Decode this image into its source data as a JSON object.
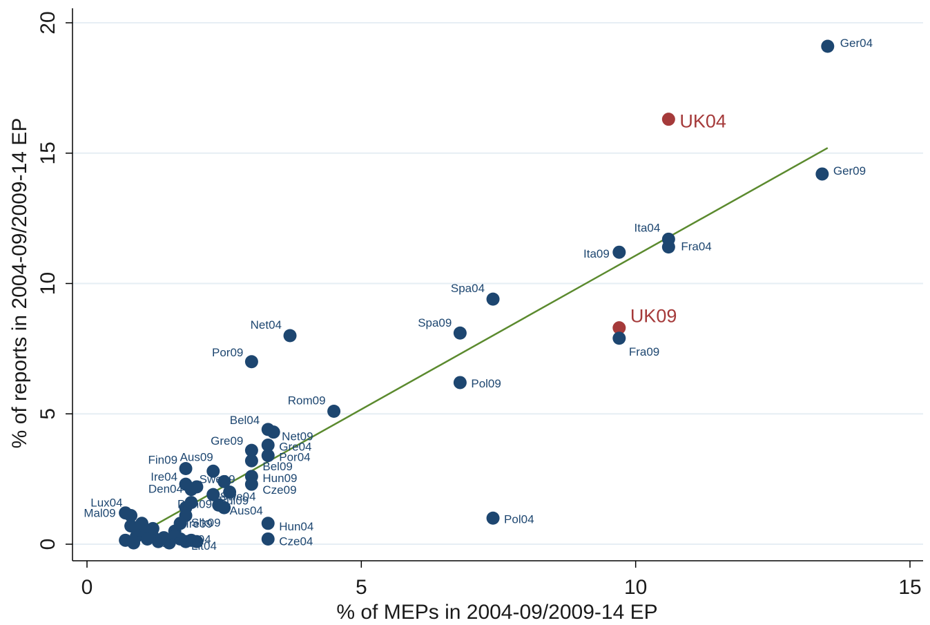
{
  "chart_data": {
    "type": "scatter",
    "xlabel": "% of MEPs in 2004-09/2009-14 EP",
    "ylabel": "% of reports in 2004-09/2009-14 EP",
    "xlim": [
      0,
      15
    ],
    "ylim": [
      0,
      20
    ],
    "xticks": [
      0,
      5,
      10,
      15
    ],
    "yticks": [
      0,
      5,
      10,
      15,
      20
    ],
    "grid": "horizontal",
    "colors": {
      "point": "#1d4670",
      "highlight": "#a53a3a",
      "fit_line": "#5b8a2e",
      "grid": "#e6eef4"
    },
    "fit_line": {
      "x": [
        0.7,
        13.5
      ],
      "y": [
        0.1,
        15.2
      ]
    },
    "points": [
      {
        "label": "Ger04",
        "x": 13.5,
        "y": 19.1
      },
      {
        "label": "UK04",
        "x": 10.6,
        "y": 16.3,
        "highlight": true
      },
      {
        "label": "Ger09",
        "x": 13.4,
        "y": 14.2
      },
      {
        "label": "Ita04",
        "x": 10.6,
        "y": 11.7
      },
      {
        "label": "Fra04",
        "x": 10.6,
        "y": 11.4
      },
      {
        "label": "Ita09",
        "x": 9.7,
        "y": 11.2
      },
      {
        "label": "Spa04",
        "x": 7.4,
        "y": 9.4
      },
      {
        "label": "UK09",
        "x": 9.7,
        "y": 8.3,
        "highlight": true
      },
      {
        "label": "Fra09",
        "x": 9.7,
        "y": 7.9
      },
      {
        "label": "Net04",
        "x": 3.7,
        "y": 8.0
      },
      {
        "label": "Spa09",
        "x": 6.8,
        "y": 8.1
      },
      {
        "label": "Por09",
        "x": 3.0,
        "y": 7.0
      },
      {
        "label": "Pol09",
        "x": 6.8,
        "y": 6.2
      },
      {
        "label": "Rom09",
        "x": 4.5,
        "y": 5.1
      },
      {
        "label": "Bel04",
        "x": 3.3,
        "y": 4.4
      },
      {
        "label": "Net09",
        "x": 3.4,
        "y": 4.3
      },
      {
        "label": "Gre09",
        "x": 3.0,
        "y": 3.6
      },
      {
        "label": "Gre04",
        "x": 3.3,
        "y": 3.8
      },
      {
        "label": "Por04",
        "x": 3.3,
        "y": 3.4
      },
      {
        "label": "Bel09",
        "x": 3.0,
        "y": 3.2
      },
      {
        "label": "Fin09",
        "x": 1.8,
        "y": 2.9
      },
      {
        "label": "Aus09",
        "x": 2.3,
        "y": 2.8
      },
      {
        "label": "Swe09",
        "x": 2.5,
        "y": 2.4
      },
      {
        "label": "Hun09",
        "x": 3.0,
        "y": 2.6
      },
      {
        "label": "Cze09",
        "x": 3.0,
        "y": 2.3
      },
      {
        "label": "Ire04",
        "x": 1.8,
        "y": 2.3
      },
      {
        "label": "Den04",
        "x": 1.9,
        "y": 2.1
      },
      {
        "label": "Swe04",
        "x": 2.6,
        "y": 2.0
      },
      {
        "label": "Bul09",
        "x": 2.3,
        "y": 1.9
      },
      {
        "label": "Den09",
        "x": 1.9,
        "y": 1.6
      },
      {
        "label": "Aus04",
        "x": 2.5,
        "y": 1.4
      },
      {
        "label": "Lux04",
        "x": 0.8,
        "y": 1.1
      },
      {
        "label": "Mal09",
        "x": 0.7,
        "y": 1.2
      },
      {
        "label": "Slk09",
        "x": 1.8,
        "y": 1.1
      },
      {
        "label": "Ire09",
        "x": 1.7,
        "y": 0.8
      },
      {
        "label": "Hun04",
        "x": 3.3,
        "y": 0.8
      },
      {
        "label": "Pol04",
        "x": 7.4,
        "y": 1.0
      },
      {
        "label": "Cze04",
        "x": 3.3,
        "y": 0.2
      },
      {
        "label": "Lit04",
        "x": 1.8,
        "y": 0.1
      },
      {
        "label": "Slk04",
        "x": 1.6,
        "y": 0.3
      },
      {
        "label": "Cyp04",
        "x": 1.1,
        "y": 0.2
      }
    ],
    "cluster_points": [
      {
        "x": 0.7,
        "y": 0.15
      },
      {
        "x": 0.85,
        "y": 0.05
      },
      {
        "x": 0.9,
        "y": 0.3
      },
      {
        "x": 0.95,
        "y": 0.55
      },
      {
        "x": 0.8,
        "y": 0.7
      },
      {
        "x": 1.0,
        "y": 0.8
      },
      {
        "x": 1.1,
        "y": 0.5
      },
      {
        "x": 1.2,
        "y": 0.3
      },
      {
        "x": 1.3,
        "y": 0.1
      },
      {
        "x": 1.4,
        "y": 0.25
      },
      {
        "x": 1.5,
        "y": 0.05
      },
      {
        "x": 1.2,
        "y": 0.6
      },
      {
        "x": 1.6,
        "y": 0.5
      },
      {
        "x": 1.7,
        "y": 0.2
      },
      {
        "x": 1.9,
        "y": 0.15
      },
      {
        "x": 2.0,
        "y": 0.1
      },
      {
        "x": 1.8,
        "y": 1.4
      },
      {
        "x": 2.0,
        "y": 2.2
      },
      {
        "x": 2.3,
        "y": 1.9
      },
      {
        "x": 2.4,
        "y": 1.5
      }
    ]
  }
}
